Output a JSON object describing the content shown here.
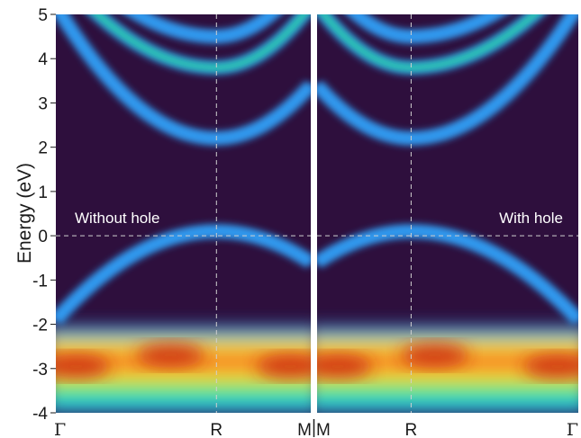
{
  "chart_data": {
    "type": "heatmap",
    "title": "",
    "ylabel": "Energy (eV)",
    "ylim": [
      -4,
      5
    ],
    "yticks": [
      "5",
      "4",
      "3",
      "2",
      "1",
      "0",
      "-1",
      "-2",
      "-3",
      "-4"
    ],
    "x_path": [
      "Γ",
      "R",
      "M",
      "M",
      "R",
      "Γ"
    ],
    "fermi_level": 0,
    "colormap": [
      "#2e0f3d",
      "#30a6ff",
      "#28e4a0",
      "#f3e02c",
      "#f7722a",
      "#c8210a"
    ],
    "panels": [
      {
        "label": "Without hole",
        "x_ticks": [
          "Γ",
          "R",
          "M"
        ],
        "x_tick_pos": [
          0,
          0.63,
          1.0
        ],
        "bands": [
          {
            "name": "valence-top",
            "energy": [
              -1.9,
              0.1,
              -0.6
            ]
          },
          {
            "name": "conduction-1",
            "energy": [
              5.2,
              2.2,
              3.4
            ]
          },
          {
            "name": "conduction-2",
            "energy": [
              6.0,
              3.8,
              5.2
            ]
          },
          {
            "name": "conduction-3",
            "energy": [
              6.6,
              4.5,
              6.0
            ]
          }
        ],
        "dense_region": [
          -4.0,
          -2.3
        ]
      },
      {
        "label": "With hole",
        "x_ticks": [
          "M",
          "R",
          "Γ"
        ],
        "x_tick_pos": [
          0,
          0.36,
          1.0
        ],
        "bands": [
          {
            "name": "valence-top",
            "energy": [
              -0.6,
              0.1,
              -1.9
            ]
          },
          {
            "name": "conduction-1",
            "energy": [
              3.4,
              2.2,
              5.2
            ]
          },
          {
            "name": "conduction-2",
            "energy": [
              5.2,
              3.8,
              6.0
            ]
          },
          {
            "name": "conduction-3",
            "energy": [
              6.0,
              4.5,
              6.6
            ]
          }
        ],
        "dense_region": [
          -4.0,
          -2.3
        ]
      }
    ]
  }
}
